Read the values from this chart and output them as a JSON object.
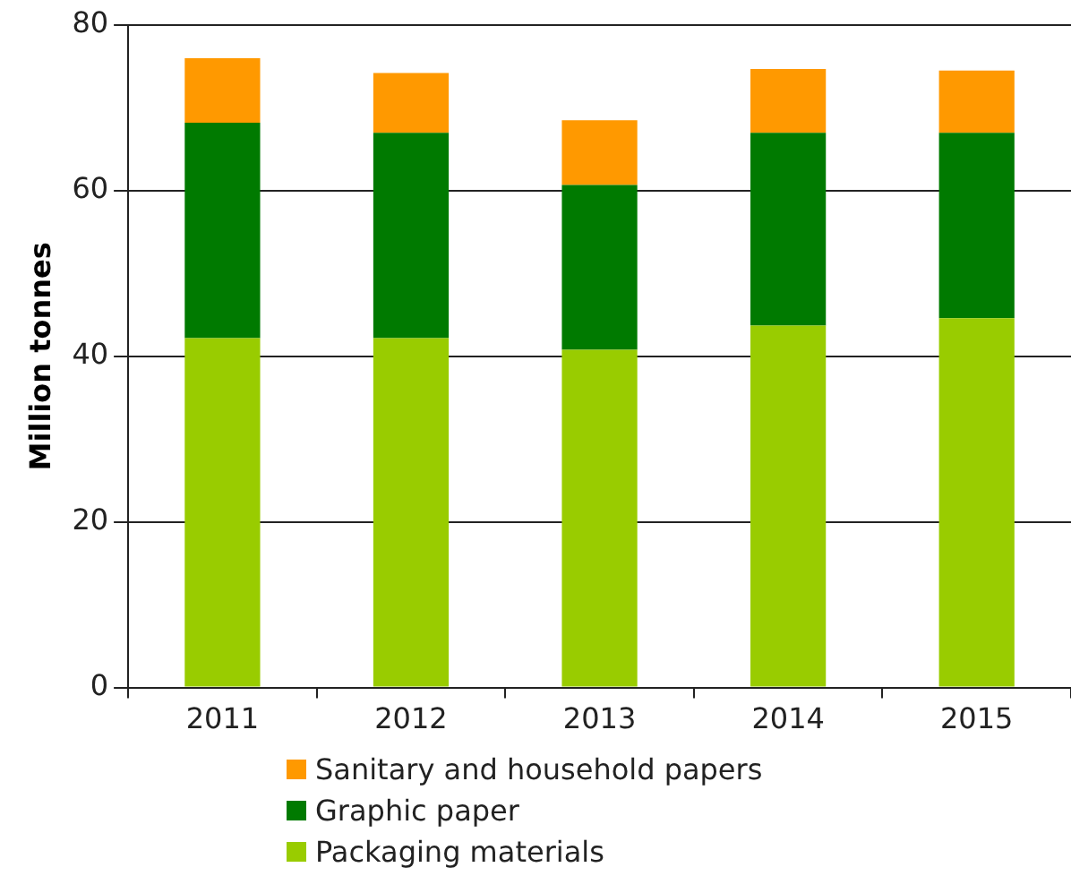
{
  "chart_data": {
    "type": "bar",
    "stacked": true,
    "ylabel": "Million tonnes",
    "categories": [
      "2011",
      "2012",
      "2013",
      "2014",
      "2015"
    ],
    "series": [
      {
        "name": "Packaging materials",
        "color": "#99cc00",
        "values": [
          42.2,
          42.2,
          40.8,
          43.7,
          44.6
        ]
      },
      {
        "name": "Graphic paper",
        "color": "#007a00",
        "values": [
          26.0,
          24.8,
          19.9,
          23.3,
          22.4
        ]
      },
      {
        "name": "Sanitary and household papers",
        "color": "#ff9900",
        "values": [
          7.8,
          7.2,
          7.8,
          7.7,
          7.5
        ]
      }
    ],
    "ylim": [
      0,
      80
    ],
    "yticks": [
      0,
      20,
      40,
      60,
      80
    ],
    "grid": "y",
    "legend": "bottom"
  }
}
